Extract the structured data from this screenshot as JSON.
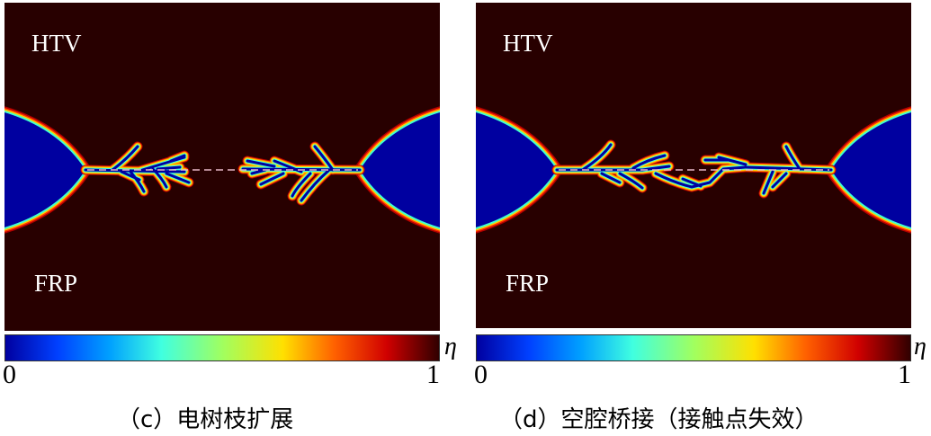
{
  "panels": [
    {
      "id": "c",
      "top_label": "HTV",
      "bottom_label": "FRP",
      "caption": "（c）电树枝扩展",
      "colorbar": {
        "min": "0",
        "max": "1",
        "symbol": "η"
      }
    },
    {
      "id": "d",
      "top_label": "HTV",
      "bottom_label": "FRP",
      "caption": "（d）空腔桥接（接触点失效）",
      "colorbar": {
        "min": "0",
        "max": "1",
        "symbol": "η"
      }
    }
  ],
  "colors": {
    "background": "#280000",
    "cavity": "#0000a0",
    "dashed_line": "#e8b8c8"
  }
}
